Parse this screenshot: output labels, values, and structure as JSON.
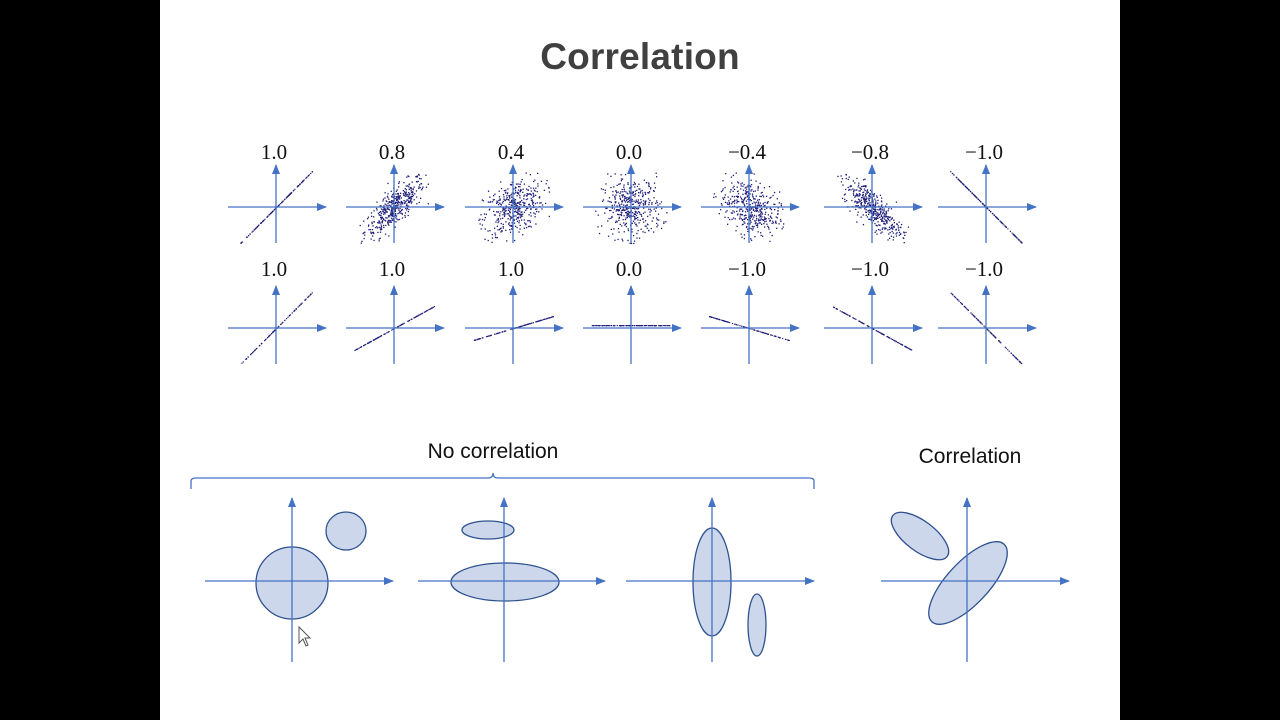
{
  "slide": {
    "title": "Correlation"
  },
  "scatter_grid": {
    "row1_labels": [
      "1.0",
      "0.8",
      "0.4",
      "0.0",
      "−0.4",
      "−0.8",
      "−1.0"
    ],
    "row1_correlations": [
      1.0,
      0.8,
      0.4,
      0.0,
      -0.4,
      -0.8,
      -1.0
    ],
    "row2_labels": [
      "1.0",
      "1.0",
      "1.0",
      "0.0",
      "−1.0",
      "−1.0",
      "−1.0"
    ],
    "row2_correlations": [
      1.0,
      1.0,
      1.0,
      0.0,
      -1.0,
      -1.0,
      -1.0
    ],
    "point_color": "#1f1f7a",
    "axis_color": "#4472c4"
  },
  "bottom_diagrams": {
    "no_correlation_label": "No correlation",
    "correlation_label": "Correlation",
    "shape_fill": "#ccd7ec",
    "shape_stroke": "#2f528f"
  }
}
